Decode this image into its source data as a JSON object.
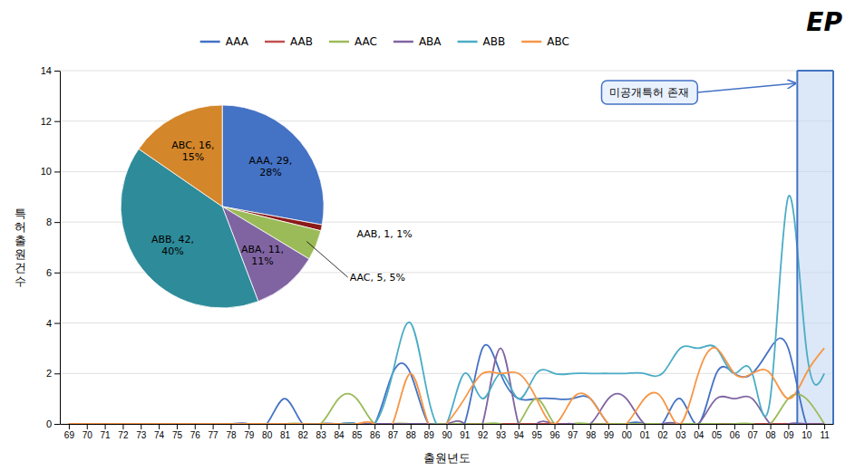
{
  "chart_data": [
    {
      "type": "line",
      "title": "EP",
      "x_label": "출원년도",
      "y_label": "특\n허\n출\n원\n건\n수",
      "categories": [
        "69",
        "70",
        "71",
        "72",
        "73",
        "74",
        "75",
        "76",
        "77",
        "78",
        "79",
        "80",
        "81",
        "82",
        "83",
        "84",
        "85",
        "86",
        "87",
        "88",
        "89",
        "90",
        "91",
        "92",
        "93",
        "94",
        "95",
        "96",
        "97",
        "98",
        "99",
        "00",
        "01",
        "02",
        "03",
        "04",
        "05",
        "06",
        "07",
        "08",
        "09",
        "10",
        "11"
      ],
      "series": [
        {
          "name": "AAA",
          "color": "#4472C4",
          "values": [
            0,
            0,
            0,
            0,
            0,
            0,
            0,
            0,
            0,
            0,
            0,
            0,
            1,
            0,
            0,
            0,
            0,
            0,
            2,
            2,
            0,
            0,
            0,
            3,
            2,
            1,
            1,
            1,
            1,
            1,
            0,
            0,
            0,
            0,
            1,
            0,
            2,
            2,
            2,
            3,
            3,
            0,
            0
          ]
        },
        {
          "name": "AAB",
          "color": "#C0504D",
          "values": [
            0,
            0,
            0,
            0,
            0,
            0,
            0,
            0,
            0,
            0,
            0,
            0,
            0,
            0,
            0,
            0,
            0,
            0,
            0,
            0,
            0,
            0,
            0,
            0,
            0,
            0,
            0,
            0,
            0,
            0,
            0,
            0,
            0,
            0,
            0,
            0,
            0,
            0,
            0,
            0,
            0,
            0,
            0
          ]
        },
        {
          "name": "AAC",
          "color": "#9BBB59",
          "values": [
            0,
            0,
            0,
            0,
            0,
            0,
            0,
            0,
            0,
            0,
            0,
            0,
            0,
            0,
            0,
            1,
            1,
            0,
            0,
            0,
            0,
            0,
            0,
            0,
            0,
            0,
            1,
            0,
            0,
            0,
            0,
            0,
            0,
            0,
            0,
            0,
            0,
            0,
            0,
            0,
            1,
            1,
            0
          ]
        },
        {
          "name": "ABA",
          "color": "#8064A2",
          "values": [
            0,
            0,
            0,
            0,
            0,
            0,
            0,
            0,
            0,
            0,
            0,
            0,
            0,
            0,
            0,
            0,
            0,
            0,
            0,
            0,
            0,
            0,
            0,
            0,
            3,
            0,
            0,
            0,
            0,
            0,
            1,
            1,
            0,
            0,
            0,
            0,
            1,
            1,
            1,
            0,
            0,
            0,
            0
          ]
        },
        {
          "name": "ABB",
          "color": "#4BACC6",
          "values": [
            0,
            0,
            0,
            0,
            0,
            0,
            0,
            0,
            0,
            0,
            0,
            0,
            0,
            0,
            0,
            0,
            0,
            0,
            2,
            4,
            1,
            0,
            2,
            1,
            2,
            1,
            2,
            2,
            2,
            2,
            2,
            2,
            2,
            2,
            3,
            3,
            3,
            2,
            2,
            1,
            9,
            3,
            2
          ]
        },
        {
          "name": "ABC",
          "color": "#F79646",
          "values": [
            0,
            0,
            0,
            0,
            0,
            0,
            0,
            0,
            0,
            0,
            0,
            0,
            0,
            0,
            0,
            0,
            0,
            0,
            0,
            2,
            0,
            0,
            1,
            2,
            2,
            2,
            1,
            0,
            1,
            1,
            0,
            0,
            1,
            1,
            0,
            2,
            3,
            2,
            2,
            2,
            1,
            2,
            3
          ]
        }
      ],
      "ylim": [
        0,
        14
      ],
      "yticks": [
        0,
        2,
        4,
        6,
        8,
        10,
        12,
        14
      ],
      "grid": true,
      "legend": "top",
      "annotations": [
        {
          "text": "미공개특허 존재",
          "categories": [
            "10",
            "11"
          ]
        }
      ]
    },
    {
      "type": "pie",
      "categories": [
        "AAA",
        "AAB",
        "AAC",
        "ABA",
        "ABB",
        "ABC"
      ],
      "values": [
        29,
        1,
        5,
        11,
        42,
        16
      ],
      "value_labels": [
        "AAA, 29,\n28%",
        "AAB, 1, 1%",
        "AAC, 5, 5%",
        "ABA, 11,\n11%",
        "ABB, 42,\n40%",
        "ABC, 16,\n15%"
      ],
      "colors": [
        "#4472C4",
        "#8B1A1A",
        "#9BBB59",
        "#8064A2",
        "#2E8B9A",
        "#D4862A"
      ],
      "data_labels": true
    }
  ]
}
